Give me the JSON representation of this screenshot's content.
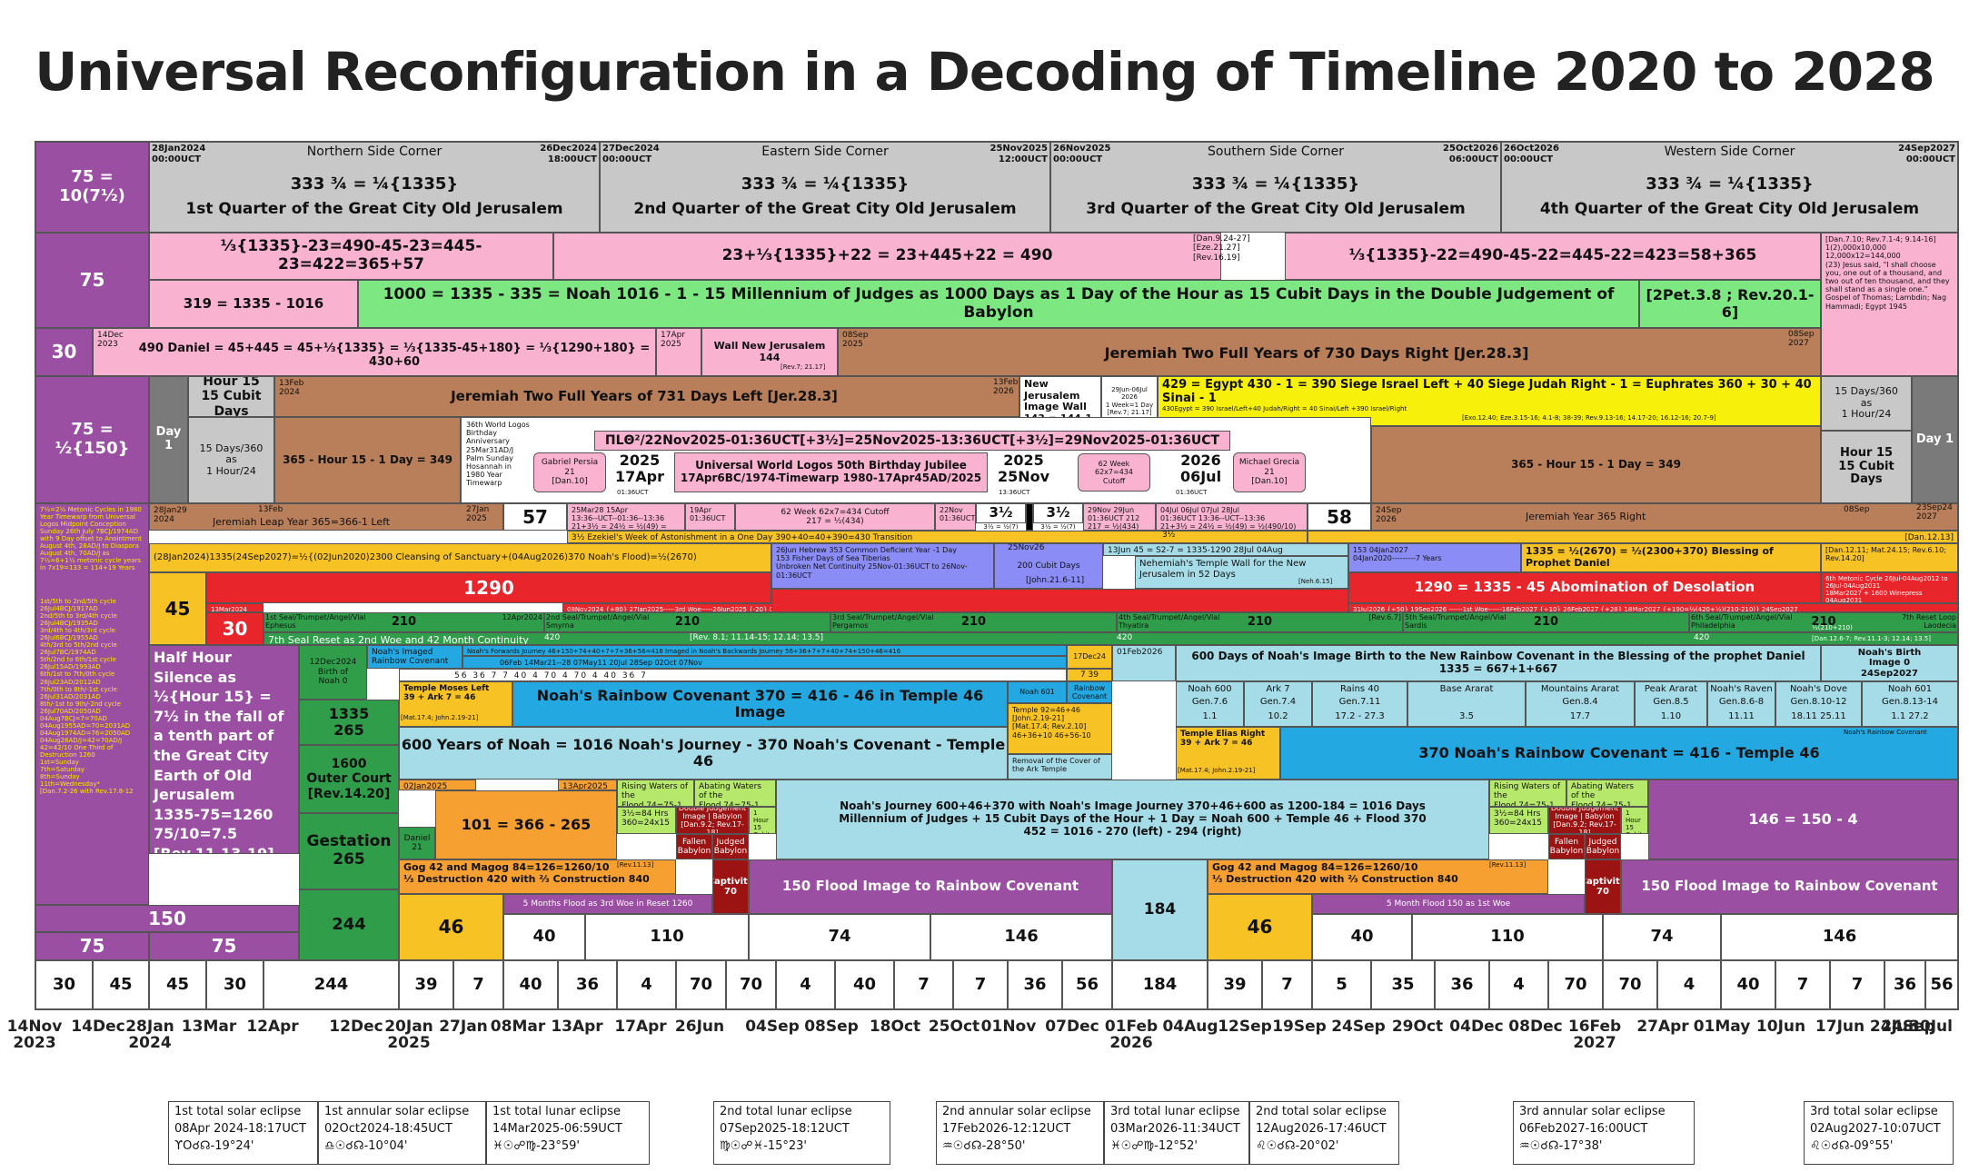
{
  "title": "Universal Reconfiguration in a Decoding of Timeline 2020 to 2028",
  "quarters": [
    {
      "start": "28Jan2024\n00:00UCT",
      "side": "Northern Side Corner",
      "end": "26Dec2024\n18:00UCT",
      "formula": "333 ¾ = ¼{1335}",
      "label": "1st Quarter of the Great City Old Jerusalem"
    },
    {
      "start": "27Dec2024\n00:00UCT",
      "side": "Eastern Side Corner",
      "end": "25Nov2025\n12:00UCT",
      "formula": "333 ¾ = ¼{1335}",
      "label": "2nd Quarter of the Great City Old Jerusalem"
    },
    {
      "start": "26Nov2025\n00:00UCT",
      "side": "Southern Side Corner",
      "end": "25Oct2026\n06:00UCT",
      "formula": "333 ¾ = ¼{1335}",
      "label": "3rd Quarter of the Great City Old Jerusalem"
    },
    {
      "start": "26Oct2026\n00:00UCT",
      "side": "Western Side Corner",
      "end": "24Sep2027\n00:00UCT",
      "formula": "333 ¾ = ¼{1335}",
      "label": "4th Quarter of the Great City Old Jerusalem"
    }
  ],
  "left": {
    "r1": "75 = 10(7½)",
    "r2": "75",
    "r3": "30",
    "r4": "75 = ½{150}",
    "r45": "45",
    "r30": "30",
    "r150": "150",
    "r75a": "75",
    "r75b": "75",
    "half": "Half Hour Silence as ½{Hour 15} = 7½ in the fall of a tenth part of the Great City Earth of Old Jerusalem\n1335-75=1260\n75/10=7.5\n[Rev.11.13-19]",
    "metonic": "7½=2½ Metonic Cycles in 1980 Year Timewarp from Universal Logos Midpoint Conception Sunday 26th July 7BCJ/1974AD with 9 Day offset to Anointment August 4th, 28AD/J to Diaspora August 4th, 70AD/J as 7½=6+1½ metonic cycle years in 7x19=133 = 114+19 Years",
    "cycles": "1st/5th to 2nd/5th cycle 26Jul4BCJ/1917AD\n2nd/5th to 3rd/4th cycle 26Jul4BCJ/1935AD\n3rd/4th to 4th/3rd cycle 26Jul6BCJ/1955AD\n4th/3rd to 5th/2nd cycle 26Jul7BC/1974AD\n5th/2nd to 6th/1st cycle 26Jul15AD/1993AD\n6th/1st to 7th/0th cycle 26Jul23AD/2012AD\n7th/0th to 8th/-1st cycle 26Jul31AD/2031AD\n8th/-1st to 9th/-2nd cycle 26Jul70AD/2050AD\n04Aug7BCJ=7=70AD\n04Aug1955AD=70=2031AD\n04Aug1974AD=76=2050AD\n04Aug28AD/J=42=70AD/J\n42=42/10 One Third of Destruction 1260\n1st=Sunday\n7th=Saturday\n8th=Sunday\n11th=Wednesday*\n[Dan.7.2-26 with Rev.17.8-12"
  },
  "row2": {
    "a": "⅓{1335}-23=490-45-23=445-23=422=365+57",
    "b": "23+⅓{1335}+22 = 23+445+22 = 490",
    "bref": "[Dan.9.24-27]\n[Eze.21.27]\n[Rev.16.19]",
    "c": "⅓{1335}-22=490-45-22=445-22=423=58+365",
    "right": "[Dan.7.10; Rev.7.1-4; 9.14-16]\n1(2),000x10,000\n12,000x12=144,000\n(23) Jesus said, \"I shall choose you, one out of a thousand, and two out of ten thousand, and they shall stand as a single one.\"\nGospel of Thomas; Lambdin; Nag Hammadi; Egypt 1945",
    "m1": "319 = 1335 - 1016",
    "m2": "1000 = 1335 - 335 = Noah 1016 - 1 - 15 Millennium of Judges as 1000 Days as 1 Day of the Hour as 15 Cubit Days in the Double Judgement of Babylon",
    "m2ref": "[2Pet.3.8 ; Rev.20.1-6]"
  },
  "row3": {
    "d": "14Dec\n2023",
    "daniel": "490 Daniel = 45+445 = 45+⅓{1335} = ⅓{1335-45+180} = ⅓{1290+180} = 430+60",
    "apr": "17Apr\n2025",
    "wall": "Wall New Jerusalem\n144",
    "wallref": "[Rev.7; 21.17]",
    "sep": "08Sep\n2025",
    "jer730": "Jeremiah Two Full Years of 730 Days Right   [Jer.28.3]",
    "sep27": "08Sep\n2027"
  },
  "row4": {
    "day1": "Day 1",
    "hour15": "Hour 15\n15 Cubit Days",
    "days360": "15 Days/360\nas\n1 Hour/24",
    "feb": "13Feb\n2024",
    "jer731": "Jeremiah Two Full Years of 731 Days Left   [Jer.28.3]",
    "feb26": "13Feb\n2026",
    "nj": "New Jerusalem\nImage Wall\n143 = 144-1",
    "njs": "29Jun-06Jul\n2026\n1 Week=1 Day\n[Rev.7; 21.17]",
    "egypt": "429 = Egypt 430 - 1 = 390 Siege Israel Left + 40 Siege Judah Right - 1 = Euphrates 360 + 30 + 40 Sinai - 1",
    "egypts": "430Egypt = 390 Israel/Left+40 Judah/Right = 40 Sinai/Left +390 Israel/Right",
    "egyptref": "[Exo.12.40; Eze.3.15-16; 4.1-8; 38-39; Rev.9.13-16; 14.17-20; 16.12-16; 20.7-9]",
    "r15": "15 Days/360\nas\n1 Hour/24",
    "rh": "Hour 15\n15 Cubit Days",
    "rday": "Day 1",
    "h349a": "365 - Hour 15 - 1 Day = 349",
    "h349b": "365 - Hour 15 - 1 Day = 349",
    "logos36": "36th World Logos Birthday Anniversary 25Mar31AD/J Palm Sunday Hosannah in 1980 Year Timewarp",
    "logosline": "ΠLΘ²/22Nov2025-01:36UCT[+3½]=25Nov2025-13:36UCT[+3½]=29Nov2025-01:36UCT",
    "gabriel": "Gabriel Persia\n21\n[Dan.10]",
    "apr17": "2025\n17Apr",
    "apr17t": "01:36UCT",
    "jubilee": "Universal World Logos 50th Birthday Jubilee\n17Apr6BC/1974-Timewarp 1980-17Apr45AD/2025",
    "nov25": "2025\n25Nov",
    "nov25t": "13:36UCT",
    "w62": "62 Week\n62x7=434\nCutoff",
    "jul06": "2026\n06Jul",
    "jul06t": "01:36UCT",
    "michael": "Michael Grecia\n21\n[Dan.10]"
  },
  "row5": {
    "a": "28Jan29\n2024",
    "b": "13Feb",
    "leap": "Jeremiah Leap Year 365=366-1 Left",
    "c": "27Jan\n2025",
    "n57": "57",
    "apr": "25Mar28 15Apr\n13:36--UCT--01:36--13:36\n21+3½ = 24½ = ½(49) = ½(490/10)",
    "apr19": "19Apr\n01:36UCT",
    "cutoff": "62 Week  62x7=434  Cutoff\n217 = ½(434)",
    "nov22": "22Nov\n01:36UCT",
    "h1": "3½",
    "h1s": "3½ = ½(7)",
    "h2": "3½",
    "h2s": "3½ = ½(7)",
    "nov29": "29Nov 29Jun\n01:36UCT 212\n217 = ½(434)",
    "jul": "04Jul  06Jul  07Jul  28Jul\n01:36UCT    13:36--UCT--13:36\n21+3½ = 24½ = ½(49) = ½(490/10)",
    "n58": "58",
    "sep": "24Sep\n2026",
    "year365": "Jeremiah Year 365 Right",
    "sep08": "08Sep",
    "sep24": "23Sep24\n2027"
  },
  "row6": {
    "week": "3½   Ezekiel's Week of Astonishment in a One Day 390+40=40+390=430 Transition",
    "week2": "3½",
    "ref": "[Dan.12.13]",
    "cleans": "(28Jan2024)1335(24Sep2027)=½{(02Jun2020)2300 Cleansing of Sanctuary+(04Aug2026)370 Noah's Flood)=½(2670)",
    "fish": "26Jun  Hebrew 353 Common Deficient Year -1 Day\n153 Fisher Days of Sea Tiberias\nUnbroken Net Continuity 25Nov-01:36UCT to 26Nov-01:36UCT",
    "nov26": "25Nov26",
    "cubit": "200 Cubit Days",
    "cubitref": "[John.21.6-11]",
    "s45": "13Jun  45 = S2-7 = 1335-1290   28Jul  04Aug",
    "nehem": "Nehemiah's Temple Wall for the New Jerusalem in 52 Days",
    "nehemref": "[Neh.6.15]",
    "y7": "153        04Jan2027\n04Jan2020---------7 Years",
    "blessing": "1335 = ½(2670) = ½(2300+370)   Blessing of Prophet Daniel",
    "blessref": "[Dan.12.11; Mat.24.15; Rev.6.10; Rev.14.20]"
  },
  "row7": {
    "n1290": "1290",
    "mar": "13Mar2024",
    "woe": "08Nov2024  {+80}  27Jan2025-----3rd Woe-----26Jun2025  {-20}  06Jun2025",
    "abom": "1290 = 1335 - 45  Abomination of  Desolation",
    "woe2": "31Jul2026 {+50}  19Sep2026 ------1st Woe------16Feb2027 {+10}  26Feb2027 {+28} 18Mar2027 {+190=½(420+½)(210-210)}  24Sep2027",
    "meton": "6th Metonic Cycle 26Jul-04Aug2012 to 26Jul-04Aug2031\n18Mar2027 + 1600 Winepress 04Aug2031"
  },
  "seals": [
    {
      "name": "1st Seal/Trumpet/Angel/Vial\nEphesus",
      "n": "210",
      "pre": "12Apr2024"
    },
    {
      "name": "2nd Seal/Trumpet/Angel/Vial\nSmyrna",
      "n": "210",
      "pre": ""
    },
    {
      "name": "3rd Seal/Trumpet/Angel/Vial\nPergamos",
      "n": "210",
      "pre": ""
    },
    {
      "name": "4th Seal/Trumpet/Angel/Vial\nThyatira",
      "n": "210",
      "pre": "[Rev.6.7]"
    },
    {
      "name": "5th Seal/Trumpet/Angel/Vial\nSardis",
      "n": "210",
      "pre": ""
    },
    {
      "name": "6th Seal/Trumpet/Angel/Vial\nPhiladelphia",
      "n": "210",
      "pre": "7th Reset Loop\nLaodecia"
    }
  ],
  "row8b": {
    "left": "7th Seal Reset as 2nd Woe and 42 Month Continuity",
    "n420a": "420",
    "ref": "[Rev. 8.1; 11.14-15; 12.14; 13.5]",
    "n420b": "420",
    "n420c": "420",
    "n2102": "½(210+210)",
    "ref2": "[Dan.12.6-7; Rev.11.1-3; 12.14; 13.5]"
  },
  "noah": {
    "dec": "12Dec2024\nBirth of\nNoah 0",
    "img": "Noah's Imaged\nRainbow Covenant",
    "fwd": "Noah's Forwards Journey 46+150+74+40+7+7+36+56=416 Imaged in Noah's Backwards Journey 56+36+7+7+40+74+150+46=416",
    "dates": "06Feb 14Mar21--28          07May11          20Jul          28Sep 02Oct          07Nov",
    "nums": "56   36   7   7   40   4   70   4   70   4   40   36   7",
    "dec24": "17Dec24",
    "n7": "7   39",
    "feb26": "01Feb2026",
    "birth": "600 Days of Noah's Image Birth to the New Rainbow Covenant in the Blessing of the prophet Daniel 1335 = 667+1+667",
    "birth0": "Noah's Birth\nImage 0\n24Sep2027",
    "moses": "Temple Moses Left\n39 + Ark 7 = 46",
    "mosesref": "[Mat.17.4; John.2.19-21]",
    "cov370": "Noah's Rainbow Covenant 370 = 416 - 46 in Temple 46 Image",
    "n601": "Noah 601",
    "rainbow": "Rainbow\nCovenant",
    "temple92": "Temple 92=46+46\n[John.2.19-21]\n[Mat.17.4; Rev.2.10]\n46+36+10  46+56-10",
    "removal": "Removal of the Cover of the Ark Temple",
    "gens": [
      {
        "t": "Noah 600",
        "g": "Gen.7.6",
        "v": "1.1"
      },
      {
        "t": "Ark 7",
        "g": "Gen.7.4",
        "v": "10.2"
      },
      {
        "t": "Rains 40",
        "g": "Gen.7.11",
        "v": "17.2 - 27.3"
      },
      {
        "t": "Base Ararat",
        "g": "",
        "v": "3.5"
      },
      {
        "t": "Mountains Ararat",
        "g": "Gen.8.4",
        "v": "17.7"
      },
      {
        "t": "Peak Ararat",
        "g": "Gen.8.5",
        "v": "1.10"
      },
      {
        "t": "Noah's Raven",
        "g": "Gen.8.6-8",
        "v": "11.11"
      },
      {
        "t": "Noah's Dove",
        "g": "Gen.8.10-12",
        "v": "18.11  25.11"
      },
      {
        "t": "Noah 601",
        "g": "Gen.8.13-14",
        "v": "1.1   27.2"
      }
    ],
    "n1335": "1335\n265",
    "n1600": "1600\nOuter Court\n[Rev.14.20]",
    "j600": "600 Years of Noah = 1016 Noah's Journey - 370 Noah's Covenant - Temple 46",
    "elias": "Temple Elias Right\n39 + Ark 7 = 46",
    "eliasref": "[Mat.17.4; John.2.19-21]",
    "cov370b": "370 Noah's Rainbow Covenant = 416 - Temple 46",
    "cov370bs": "Noah's Rainbow Covenant"
  },
  "lower": {
    "gest": "Gestation\n265",
    "jan": "02Jan2025",
    "apr": "13Apr2025",
    "daniel": "Daniel\n21",
    "n101": "101 = 366 - 265",
    "rising": "Rising Waters of the\nFlood 74=75-1 Hour",
    "abating": "Abating Waters of the\nFlood 74=75-1 Hour",
    "hrs": "3½=84 Hrs\n360=24x15",
    "dj": "Double Judgement\nImage | Babylon\n[Dan.9.2; Rev.17-18]",
    "h15": "1 Hour 15\nCubit Days",
    "fallen": "Fallen\nBabylon",
    "judged": "Judged\nBabylon",
    "journey": "Noah's Journey 600+46+370 with Noah's Image Journey 370+46+600 as 1200-184 = 1016 Days\nMillennium of Judges + 15 Cubit Days of the Hour + 1 Day = Noah 600 + Temple 46 + Flood 370\n452 = 1016 - 270 (left) - 294 (right)",
    "n146": "146 = 150 - 4",
    "n244": "244",
    "gog": "Gog 42 and Magog 84=126=1260/10\n⅓ Destruction 420 with  ⅔ Construction 840",
    "gogref": "[Rev.11.13]",
    "capt": "Captivity\n70",
    "flood150": "150 Flood Image to Rainbow Covenant",
    "n184": "184",
    "n46": "46",
    "woe5": "5 Months Flood as 3rd Woe in Reset 1260",
    "woe5b": "5 Month Flood 150 as 1st Woe"
  },
  "bottomrow": {
    "a": [
      "40",
      "110",
      "74",
      "146"
    ],
    "b": [
      "40",
      "110",
      "74",
      "146"
    ]
  },
  "bottomnums": [
    "30",
    "45",
    "45",
    "30",
    "244",
    "39",
    "7",
    "40",
    "36",
    "4",
    "70",
    "70",
    "4",
    "40",
    "7",
    "7",
    "36",
    "56",
    "184",
    "39",
    "7",
    "5",
    "35",
    "36",
    "4",
    "70",
    "70",
    "4",
    "40",
    "7",
    "7",
    "36",
    "56"
  ],
  "dates": [
    "14Nov\n2023",
    "14Dec",
    "28Jan\n2024",
    "13Mar",
    "12Apr",
    "12Dec",
    "20Jan\n2025",
    "27Jan",
    "08Mar",
    "13Apr",
    "17Apr",
    "26Jun",
    "04Sep",
    "08Sep",
    "18Oct",
    "25Oct",
    "01Nov",
    "07Dec",
    "01Feb\n2026",
    "04Aug",
    "12Sep",
    "19Sep",
    "24Sep",
    "29Oct",
    "04Dec",
    "08Dec",
    "16Feb\n2027",
    "27Apr",
    "01May",
    "10Jun",
    "17Jun",
    "24Jun",
    "30Jul",
    "24Sep"
  ],
  "eclipses": [
    {
      "a": "1st  total solar eclipse",
      "b": "08Apr 2024-18:17UCT",
      "c": "ϒΟ☌☊-19°24'"
    },
    {
      "a": "1st  annular solar eclipse",
      "b": "02Oct2024-18:45UCT",
      "c": "♎☉☌☊-10°04'"
    },
    {
      "a": "1st total lunar eclipse",
      "b": "14Mar2025-06:59UCT",
      "c": "♓☉☍♍-23°59'"
    },
    {
      "a": "2nd total lunar eclipse",
      "b": "07Sep2025-18:12UCT",
      "c": "♍☉☍♓-15°23'"
    },
    {
      "a": "2nd annular solar eclipse",
      "b": "17Feb2026-12:12UCT",
      "c": "♒☉☌☊-28°50'"
    },
    {
      "a": "3rd total lunar eclipse",
      "b": "03Mar2026-11:34UCT",
      "c": "♓☉☍♍-12°52'"
    },
    {
      "a": "2nd total solar eclipse",
      "b": "12Aug2026-17:46UCT",
      "c": "♌☉☌☊-20°02'"
    },
    {
      "a": "3rd annular solar eclipse",
      "b": "06Feb2027-16:00UCT",
      "c": "♒☉☌☊-17°38'"
    },
    {
      "a": "3rd total solar eclipse",
      "b": "02Aug2027-10:07UCT",
      "c": "♌☉☌☊-09°55'"
    }
  ]
}
